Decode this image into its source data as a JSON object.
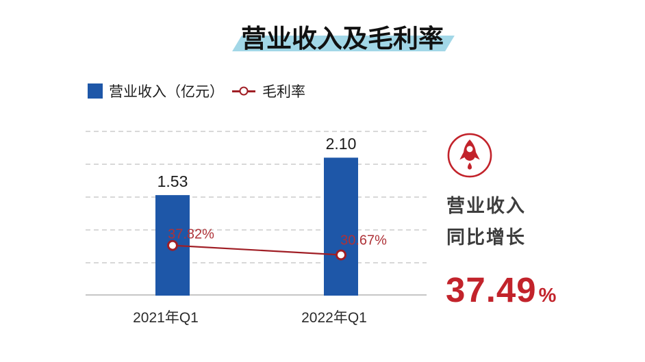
{
  "title": {
    "text": "营业收入及毛利率"
  },
  "legend": {
    "items": [
      {
        "label": "营业收入（亿元）",
        "marker": "square"
      },
      {
        "label": "毛利率",
        "marker": "line-circle"
      }
    ]
  },
  "colors": {
    "bar_blue": "#1E57A8",
    "line_red": "#A01E25",
    "label_red": "#AE3238",
    "accent_red": "#C2232B",
    "title_highlight": "#A2D7E7",
    "gridline": "#D8D8D8",
    "axis_line": "#C6C6C6"
  },
  "chart_data": {
    "type": "bar",
    "subtype": "bar-line-combo",
    "title": "营业收入及毛利率",
    "categories": [
      "2021年Q1",
      "2022年Q1"
    ],
    "series": [
      {
        "name": "营业收入（亿元）",
        "type": "bar",
        "values": [
          1.53,
          2.1
        ],
        "data_labels": [
          "1.53",
          "2.10"
        ]
      },
      {
        "name": "毛利率",
        "type": "line",
        "values_percent": [
          37.82,
          30.67
        ],
        "data_labels": [
          "37.82%",
          "30.67%"
        ]
      }
    ],
    "bar_axis": {
      "min": 0,
      "max": 2.5,
      "gridline_values": [
        0.5,
        1.0,
        1.5,
        2.0,
        2.5
      ],
      "tick_labels_visible": false
    },
    "grid": "horizontal-dashed",
    "legend_position": "top-left"
  },
  "callout": {
    "icon": "rocket-icon",
    "title_line1": "营业收入",
    "title_line2": "同比增长",
    "value": "37.49",
    "unit": "%"
  }
}
